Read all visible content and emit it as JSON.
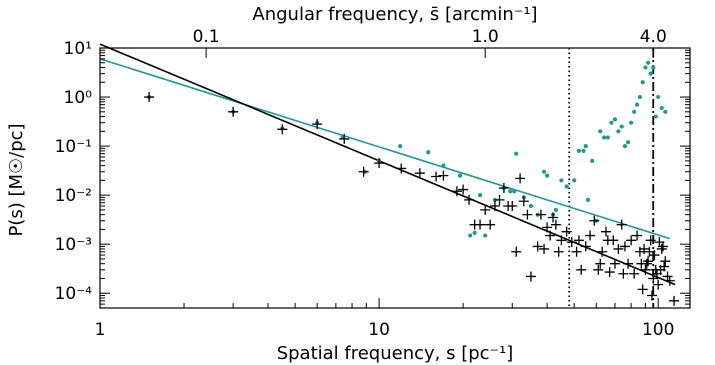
{
  "chart_data": {
    "type": "scatter",
    "xscale": "log",
    "yscale": "log",
    "xlim": [
      1,
      130
    ],
    "ylim": [
      5e-05,
      10
    ],
    "grid": false,
    "xlabel": "Spatial frequency, s [pc⁻¹]",
    "ylabel": "P(s)   [M☉/pc]",
    "top_axis": {
      "label": "Angular frequency, s̄ [arcmin⁻¹]",
      "ticks": [
        {
          "label": "0.1",
          "at_x": 2.4
        },
        {
          "label": "1.0",
          "at_x": 24
        },
        {
          "label": "4.0",
          "at_x": 96
        }
      ]
    },
    "x_ticks": [
      {
        "v": 1,
        "label": "1"
      },
      {
        "v": 10,
        "label": "10"
      },
      {
        "v": 100,
        "label": "100"
      }
    ],
    "y_ticks": [
      {
        "v": 10,
        "label": "10¹"
      },
      {
        "v": 1,
        "label": "10⁰"
      },
      {
        "v": 0.1,
        "label": "10⁻¹"
      },
      {
        "v": 0.01,
        "label": "10⁻²"
      },
      {
        "v": 0.001,
        "label": "10⁻³"
      },
      {
        "v": 0.0001,
        "label": "10⁻⁴"
      }
    ],
    "colors": {
      "teal": "#1a9a9a",
      "black": "#000000"
    },
    "vlines": [
      {
        "x": 48,
        "style": "dotted"
      },
      {
        "x": 96,
        "style": "dashdot"
      }
    ],
    "fit_lines": [
      {
        "color": "teal",
        "x": [
          1,
          110
        ],
        "y": [
          6.0,
          0.0013
        ]
      },
      {
        "color": "black",
        "x": [
          1,
          115
        ],
        "y": [
          12.0,
          0.00015
        ]
      }
    ],
    "series": [
      {
        "marker": "dot",
        "color": "teal",
        "x": [
          1.5,
          3.0,
          4.5,
          6.0,
          7.4,
          8.9,
          10,
          11.9,
          15,
          17,
          19.5,
          21.2,
          22,
          23,
          24,
          26,
          28,
          29.5,
          30.5,
          31,
          33,
          35,
          37,
          39,
          40,
          42,
          43,
          45,
          47,
          50,
          52,
          54,
          55,
          56,
          58,
          60,
          62,
          64,
          66,
          68,
          70,
          72,
          74,
          76,
          78,
          80,
          82,
          84,
          86,
          88,
          90,
          92,
          94,
          96,
          98,
          100,
          103,
          106
        ],
        "y": [
          1.0,
          0.5,
          0.23,
          0.3,
          0.15,
          0.03,
          0.05,
          0.1,
          0.075,
          0.04,
          0.025,
          0.0015,
          0.0017,
          0.01,
          0.0015,
          0.008,
          0.014,
          0.012,
          0.012,
          0.07,
          0.009,
          0.006,
          0.004,
          0.03,
          0.025,
          0.004,
          0.005,
          0.02,
          0.015,
          0.02,
          0.08,
          0.08,
          0.1,
          0.008,
          0.05,
          0.003,
          0.2,
          0.15,
          0.15,
          0.3,
          0.35,
          0.2,
          0.25,
          0.1,
          0.12,
          0.3,
          0.5,
          0.7,
          1.0,
          2.0,
          4.0,
          5.0,
          3.0,
          4.0,
          0.4,
          1.0,
          0.6,
          0.5
        ]
      },
      {
        "marker": "plus",
        "color": "black",
        "x": [
          1.5,
          3.0,
          4.5,
          6.0,
          7.5,
          8.8,
          10,
          12,
          14,
          16,
          17,
          19,
          20,
          21,
          22,
          23,
          24,
          25,
          26,
          27,
          28,
          29,
          30,
          31,
          32,
          33,
          34,
          35,
          37,
          38,
          39,
          40,
          41,
          42,
          43,
          44,
          45,
          47,
          49,
          51,
          52,
          53,
          55,
          57,
          59,
          61,
          62,
          63,
          65,
          66,
          67,
          69,
          70,
          72,
          74,
          75,
          76,
          78,
          80,
          82,
          84,
          86,
          87,
          88,
          89,
          90,
          91,
          92,
          93,
          94,
          95,
          96,
          97,
          98,
          99,
          100,
          101,
          102,
          103,
          104,
          105,
          106,
          108,
          110,
          114
        ],
        "y": [
          1.0,
          0.5,
          0.22,
          0.28,
          0.14,
          0.03,
          0.045,
          0.035,
          0.028,
          0.024,
          0.025,
          0.012,
          0.013,
          0.008,
          0.0025,
          0.0025,
          0.005,
          0.0025,
          0.006,
          0.008,
          0.014,
          0.006,
          0.006,
          0.0007,
          0.022,
          0.0075,
          0.004,
          0.00022,
          0.0009,
          0.004,
          0.0008,
          0.0022,
          0.0015,
          0.0035,
          0.0025,
          0.0007,
          0.0012,
          0.0018,
          0.0011,
          0.0007,
          0.0012,
          0.0003,
          0.0009,
          0.0015,
          0.003,
          0.0003,
          0.0004,
          0.0007,
          0.0018,
          0.0012,
          0.00027,
          0.0012,
          0.0004,
          0.0008,
          0.0025,
          0.00025,
          0.0009,
          0.0004,
          0.0012,
          0.00025,
          0.0015,
          0.0007,
          0.0004,
          0.00012,
          0.0008,
          0.0003,
          0.0004,
          0.00045,
          0.0007,
          0.0012,
          9e-05,
          0.0002,
          0.0006,
          0.0003,
          0.00025,
          0.00015,
          0.0011,
          0.0003,
          0.0008,
          0.0009,
          0.00035,
          0.00045,
          0.00022,
          0.00018,
          7e-05
        ]
      }
    ]
  }
}
